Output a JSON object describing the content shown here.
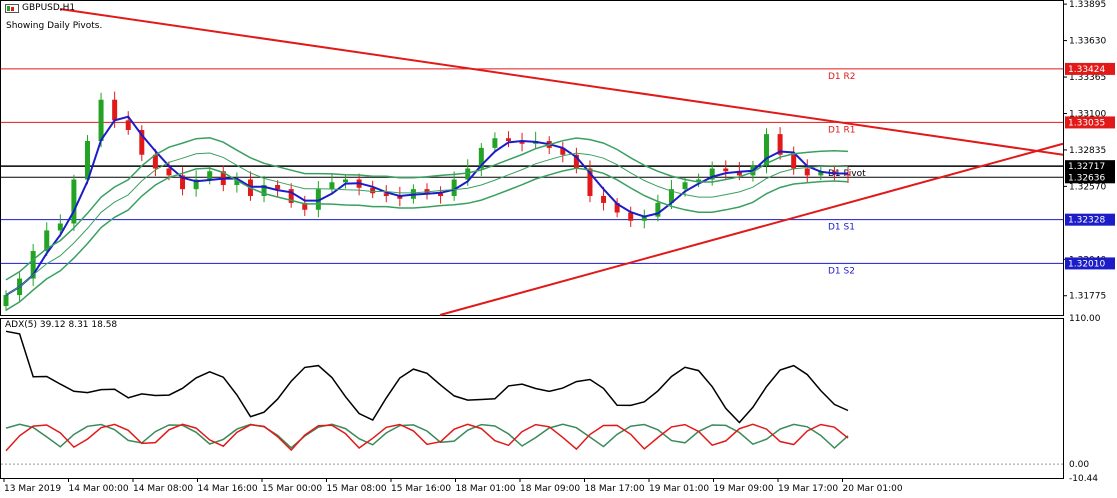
{
  "header": {
    "symbol_title": "GBPUSD,H1",
    "subtitle": "Showing Daily Pivots."
  },
  "price_scale": {
    "ticks": [
      "1.33895",
      "1.33630",
      "1.33365",
      "1.33100",
      "1.32835",
      "1.32570",
      "1.32040",
      "1.31775"
    ],
    "tags": [
      {
        "label": "1.33424",
        "value": 1.33424,
        "color": "#e11919"
      },
      {
        "label": "1.33035",
        "value": 1.33035,
        "color": "#e11919"
      },
      {
        "label": "1.32717",
        "value": 1.32717,
        "color": "#000000"
      },
      {
        "label": "1.32636",
        "value": 1.32636,
        "color": "#000000"
      },
      {
        "label": "1.32328",
        "value": 1.32328,
        "color": "#1c1cc8"
      },
      {
        "label": "1.32010",
        "value": 1.3201,
        "color": "#1c1cc8"
      }
    ]
  },
  "pivots": [
    {
      "label": "D1  R2",
      "value": 1.33424,
      "color": "#e11919"
    },
    {
      "label": "D1  R1",
      "value": 1.33035,
      "color": "#e11919"
    },
    {
      "label": "D1  Pivot",
      "value": 1.32717,
      "color": "#000000"
    },
    {
      "label": "D1  S1",
      "value": 1.32328,
      "color": "#1c1cc8"
    },
    {
      "label": "D1  S2",
      "value": 1.3201,
      "color": "#1c1cc8"
    }
  ],
  "adx": {
    "label": "ADX(5) 39.12 8.31 18.58",
    "scale_top": "110.00",
    "scale_zero": "0.00",
    "scale_bottom": "-10.44"
  },
  "time_axis": {
    "labels": [
      "13 Mar 2019",
      "14 Mar 00:00",
      "14 Mar 08:00",
      "14 Mar 16:00",
      "15 Mar 00:00",
      "15 Mar 08:00",
      "15 Mar 16:00",
      "18 Mar 01:00",
      "18 Mar 09:00",
      "18 Mar 17:00",
      "19 Mar 01:00",
      "19 Mar 09:00",
      "19 Mar 17:00",
      "20 Mar 01:00"
    ]
  },
  "colors": {
    "bull": "#23a323",
    "bear": "#e11919",
    "ma": "#1c1cc8",
    "bands": "#3aa060",
    "trendline": "#e11919",
    "adx_main": "#000000",
    "adx_plus": "#3a8a5a",
    "adx_minus": "#e11919"
  },
  "chart_data": {
    "type": "candlestick",
    "symbol": "GBPUSD",
    "timeframe": "H1",
    "series": [
      {
        "name": "GBPUSD",
        "close": [
          1.3178,
          1.319,
          1.321,
          1.3225,
          1.323,
          1.3262,
          1.329,
          1.332,
          1.3305,
          1.3298,
          1.328,
          1.327,
          1.3265,
          1.3255,
          1.3262,
          1.3268,
          1.3258,
          1.3262,
          1.325,
          1.3258,
          1.3255,
          1.3245,
          1.324,
          1.3255,
          1.326,
          1.3262,
          1.3256,
          1.3252,
          1.325,
          1.3248,
          1.3255,
          1.3252,
          1.325,
          1.3262,
          1.327,
          1.3285,
          1.3292,
          1.329,
          1.3288,
          1.329,
          1.3285,
          1.328,
          1.327,
          1.325,
          1.3245,
          1.3238,
          1.3232,
          1.3235,
          1.3245,
          1.3255,
          1.326,
          1.3262,
          1.327,
          1.3268,
          1.3265,
          1.3272,
          1.3295,
          1.328,
          1.327,
          1.3265,
          1.3268,
          1.3266,
          1.3265
        ]
      }
    ]
  }
}
